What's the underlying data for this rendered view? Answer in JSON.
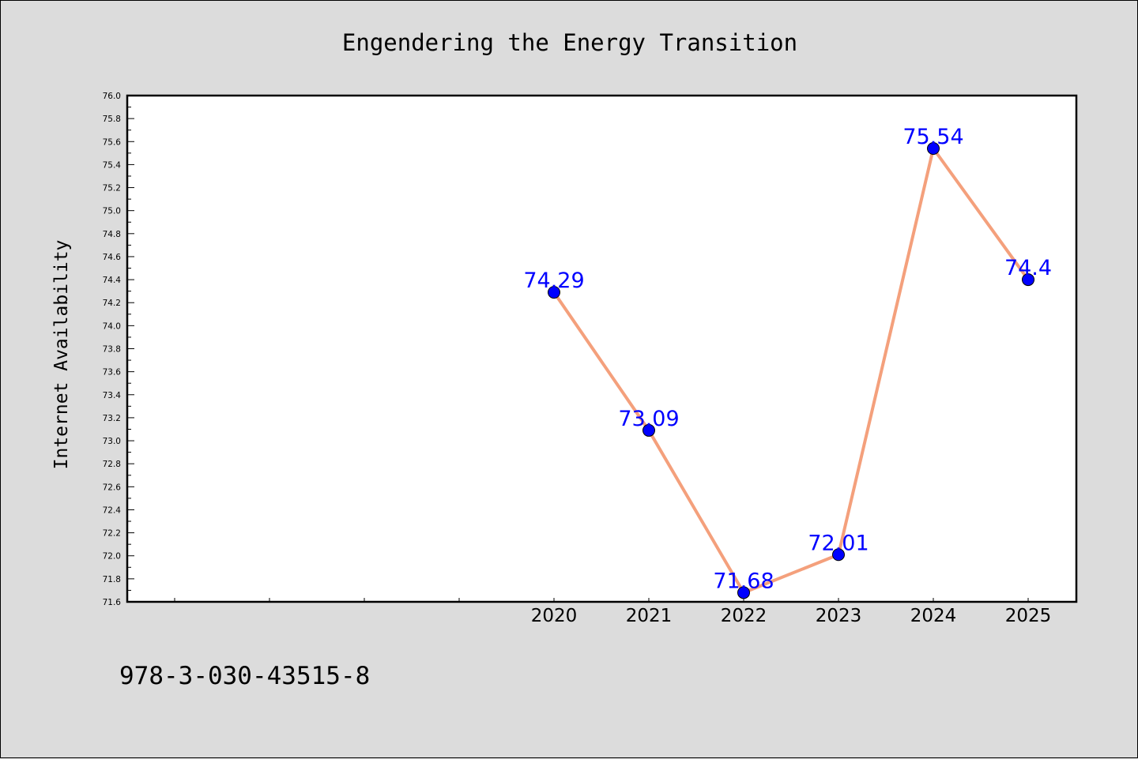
{
  "chart_data": {
    "type": "line",
    "title": "Engendering the Energy Transition",
    "xlabel": "",
    "ylabel": "Internet Availability",
    "x": [
      2020,
      2021,
      2022,
      2023,
      2024,
      2025
    ],
    "x_tick_labels": [
      "2020",
      "2021",
      "2022",
      "2023",
      "2024",
      "2025"
    ],
    "series": [
      {
        "values": [
          74.29,
          73.09,
          71.68,
          72.01,
          75.54,
          74.4
        ]
      }
    ],
    "data_labels": [
      "74.29",
      "73.09",
      "71.68",
      "72.01",
      "75.54",
      "74.4"
    ],
    "ylim": [
      71.6,
      76.0
    ],
    "y_ticks": [
      "71.6",
      "71.8",
      "72.0",
      "72.2",
      "72.4",
      "72.6",
      "72.8",
      "73.0",
      "73.2",
      "73.4",
      "73.6",
      "73.8",
      "74.0",
      "74.2",
      "74.4",
      "74.6",
      "74.8",
      "75.0",
      "75.2",
      "75.4",
      "75.6",
      "75.8",
      "76.0"
    ],
    "grid": false,
    "legend": "none",
    "colors": {
      "line": "#f4a07c",
      "marker": "#0000ff",
      "data_label": "#0000ff",
      "background": "#dcdcdc",
      "plot_background": "#ffffff"
    }
  },
  "footer": {
    "text": "978-3-030-43515-8"
  }
}
